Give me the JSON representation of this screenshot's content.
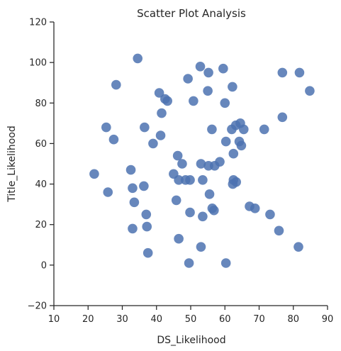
{
  "chart_data": {
    "type": "scatter",
    "title": "Scatter Plot Analysis",
    "xlabel": "DS_Likelihood",
    "ylabel": "Title_Likelihood",
    "xlim": [
      10,
      90
    ],
    "ylim": [
      -20,
      120
    ],
    "xticks": [
      10,
      20,
      30,
      40,
      50,
      60,
      70,
      80,
      90
    ],
    "yticks": [
      -20,
      0,
      20,
      40,
      60,
      80,
      100,
      120
    ],
    "grid": false,
    "legend": "none",
    "marker_color": "#4c72b0",
    "points": [
      {
        "x": 34.5,
        "y": 102
      },
      {
        "x": 52.8,
        "y": 98
      },
      {
        "x": 59.5,
        "y": 97
      },
      {
        "x": 28.2,
        "y": 89
      },
      {
        "x": 49.2,
        "y": 92
      },
      {
        "x": 55.2,
        "y": 95
      },
      {
        "x": 76.8,
        "y": 95
      },
      {
        "x": 81.8,
        "y": 95
      },
      {
        "x": 62.2,
        "y": 88
      },
      {
        "x": 84.8,
        "y": 86
      },
      {
        "x": 40.8,
        "y": 85
      },
      {
        "x": 55.0,
        "y": 86
      },
      {
        "x": 42.5,
        "y": 82
      },
      {
        "x": 43.2,
        "y": 81
      },
      {
        "x": 50.8,
        "y": 81
      },
      {
        "x": 60.0,
        "y": 80
      },
      {
        "x": 41.5,
        "y": 75
      },
      {
        "x": 25.3,
        "y": 68
      },
      {
        "x": 36.5,
        "y": 68
      },
      {
        "x": 56.2,
        "y": 67
      },
      {
        "x": 62.0,
        "y": 67
      },
      {
        "x": 63.2,
        "y": 69
      },
      {
        "x": 64.5,
        "y": 70
      },
      {
        "x": 65.5,
        "y": 67
      },
      {
        "x": 71.5,
        "y": 67
      },
      {
        "x": 76.8,
        "y": 73
      },
      {
        "x": 41.2,
        "y": 64
      },
      {
        "x": 27.5,
        "y": 62
      },
      {
        "x": 39.0,
        "y": 60
      },
      {
        "x": 60.3,
        "y": 61
      },
      {
        "x": 64.2,
        "y": 61
      },
      {
        "x": 64.8,
        "y": 59
      },
      {
        "x": 46.2,
        "y": 54
      },
      {
        "x": 62.5,
        "y": 55
      },
      {
        "x": 47.5,
        "y": 50
      },
      {
        "x": 53.0,
        "y": 50
      },
      {
        "x": 58.5,
        "y": 51
      },
      {
        "x": 55.2,
        "y": 49
      },
      {
        "x": 57.0,
        "y": 49
      },
      {
        "x": 32.5,
        "y": 47
      },
      {
        "x": 21.8,
        "y": 45
      },
      {
        "x": 45.0,
        "y": 45
      },
      {
        "x": 46.5,
        "y": 42
      },
      {
        "x": 48.5,
        "y": 42
      },
      {
        "x": 49.8,
        "y": 42
      },
      {
        "x": 53.5,
        "y": 42
      },
      {
        "x": 62.5,
        "y": 42
      },
      {
        "x": 63.3,
        "y": 41
      },
      {
        "x": 62.3,
        "y": 40
      },
      {
        "x": 33.0,
        "y": 38
      },
      {
        "x": 36.3,
        "y": 39
      },
      {
        "x": 25.8,
        "y": 36
      },
      {
        "x": 55.5,
        "y": 35
      },
      {
        "x": 33.5,
        "y": 31
      },
      {
        "x": 45.8,
        "y": 32
      },
      {
        "x": 67.2,
        "y": 29
      },
      {
        "x": 68.8,
        "y": 28
      },
      {
        "x": 56.3,
        "y": 28
      },
      {
        "x": 56.8,
        "y": 27
      },
      {
        "x": 49.8,
        "y": 26
      },
      {
        "x": 37.0,
        "y": 25
      },
      {
        "x": 53.5,
        "y": 24
      },
      {
        "x": 73.2,
        "y": 25
      },
      {
        "x": 33.0,
        "y": 18
      },
      {
        "x": 37.2,
        "y": 19
      },
      {
        "x": 75.8,
        "y": 17
      },
      {
        "x": 46.5,
        "y": 13
      },
      {
        "x": 53.0,
        "y": 9
      },
      {
        "x": 81.5,
        "y": 9
      },
      {
        "x": 37.5,
        "y": 6
      },
      {
        "x": 49.5,
        "y": 1
      },
      {
        "x": 60.3,
        "y": 1
      }
    ]
  }
}
